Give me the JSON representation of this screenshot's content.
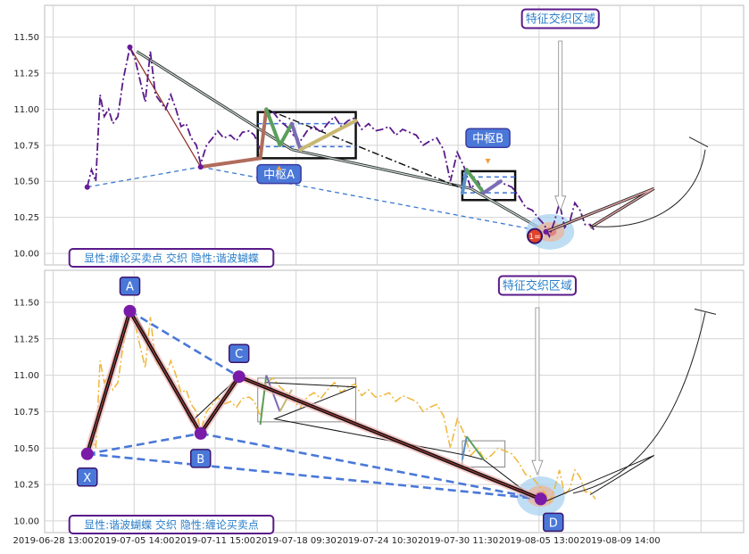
{
  "chart_data": [
    {
      "type": "line",
      "panel": "top",
      "ylim": [
        9.92,
        11.72
      ],
      "yticks": [
        10.0,
        10.25,
        10.5,
        10.75,
        11.0,
        11.25,
        11.5
      ],
      "grid": true,
      "legend_text": "显性:缠论买卖点 交织 隐性:谐波蝴蝶",
      "feature_label": "特征交织区域",
      "zhongshu": [
        {
          "label": "中枢A",
          "x0": 20.0,
          "x1": 31.5,
          "y0": 10.66,
          "y1": 10.98,
          "inner_y0": 10.74,
          "inner_y1": 10.9
        },
        {
          "label": "中枢B",
          "x0": 44.0,
          "x1": 50.2,
          "y0": 10.37,
          "y1": 10.57,
          "inner_y0": 10.42,
          "inner_y1": 10.53
        }
      ],
      "buy_point_marker": "1=",
      "price": [
        [
          0.0,
          10.46
        ],
        [
          0.5,
          10.58
        ],
        [
          1.0,
          10.5
        ],
        [
          1.5,
          11.1
        ],
        [
          2.0,
          10.95
        ],
        [
          2.5,
          11.0
        ],
        [
          3.0,
          10.9
        ],
        [
          3.6,
          10.95
        ],
        [
          4.2,
          11.2
        ],
        [
          5.0,
          11.43
        ],
        [
          5.6,
          11.35
        ],
        [
          6.2,
          11.2
        ],
        [
          6.8,
          11.05
        ],
        [
          7.4,
          11.4
        ],
        [
          8.0,
          11.1
        ],
        [
          8.6,
          11.05
        ],
        [
          9.2,
          11.0
        ],
        [
          9.8,
          11.1
        ],
        [
          10.4,
          11.0
        ],
        [
          11.0,
          10.88
        ],
        [
          11.6,
          10.9
        ],
        [
          12.2,
          10.8
        ],
        [
          12.8,
          10.75
        ],
        [
          13.3,
          10.62
        ],
        [
          14.0,
          10.75
        ],
        [
          14.7,
          10.8
        ],
        [
          15.3,
          10.85
        ],
        [
          16.0,
          10.8
        ],
        [
          16.8,
          10.82
        ],
        [
          17.5,
          10.78
        ],
        [
          18.2,
          10.84
        ],
        [
          19.0,
          10.85
        ],
        [
          19.6,
          10.82
        ],
        [
          20.3,
          10.72
        ],
        [
          21.0,
          10.95
        ],
        [
          21.8,
          10.98
        ],
        [
          22.6,
          10.92
        ],
        [
          23.4,
          10.88
        ],
        [
          24.2,
          10.82
        ],
        [
          25.0,
          10.78
        ],
        [
          25.8,
          10.85
        ],
        [
          26.6,
          10.88
        ],
        [
          27.4,
          10.84
        ],
        [
          28.2,
          10.9
        ],
        [
          29.0,
          10.95
        ],
        [
          29.8,
          10.88
        ],
        [
          30.6,
          10.92
        ],
        [
          31.4,
          10.94
        ],
        [
          32.2,
          10.86
        ],
        [
          33.0,
          10.9
        ],
        [
          33.8,
          10.85
        ],
        [
          34.6,
          10.86
        ],
        [
          35.4,
          10.88
        ],
        [
          36.2,
          10.82
        ],
        [
          37.0,
          10.86
        ],
        [
          37.8,
          10.84
        ],
        [
          38.6,
          10.82
        ],
        [
          39.4,
          10.75
        ],
        [
          40.2,
          10.78
        ],
        [
          41.0,
          10.8
        ],
        [
          41.8,
          10.72
        ],
        [
          42.6,
          10.5
        ],
        [
          43.4,
          10.7
        ],
        [
          44.2,
          10.6
        ],
        [
          45.0,
          10.45
        ],
        [
          45.8,
          10.5
        ],
        [
          46.6,
          10.42
        ],
        [
          47.4,
          10.45
        ],
        [
          48.2,
          10.5
        ],
        [
          49.0,
          10.48
        ],
        [
          49.8,
          10.46
        ],
        [
          50.6,
          10.4
        ],
        [
          51.4,
          10.32
        ],
        [
          52.2,
          10.3
        ],
        [
          53.0,
          10.24
        ],
        [
          53.6,
          10.2
        ],
        [
          54.2,
          10.12
        ],
        [
          54.8,
          10.22
        ],
        [
          55.4,
          10.35
        ],
        [
          56.0,
          10.18
        ],
        [
          56.6,
          10.22
        ],
        [
          57.2,
          10.35
        ],
        [
          57.8,
          10.3
        ],
        [
          58.4,
          10.2
        ],
        [
          59.0,
          10.2
        ],
        [
          59.6,
          10.15
        ]
      ],
      "bi_segments": [
        [
          0.0,
          10.46
        ],
        [
          5.0,
          11.43
        ],
        [
          13.3,
          10.6
        ],
        [
          20.3,
          10.68
        ],
        [
          21.0,
          11.0
        ],
        [
          24.5,
          10.72
        ],
        [
          31.5,
          10.92
        ],
        [
          44.0,
          10.45
        ],
        [
          44.5,
          10.58
        ],
        [
          46.5,
          10.42
        ],
        [
          48.5,
          10.5
        ],
        [
          52.5,
          10.25
        ],
        [
          53.8,
          10.12
        ]
      ],
      "xd_lines": [
        {
          "points": [
            [
              5.8,
              11.4
            ],
            [
              24.0,
              10.72
            ]
          ],
          "style": "solid-double"
        },
        {
          "points": [
            [
              24.0,
              10.72
            ],
            [
              45.0,
              10.45
            ]
          ],
          "style": "solid-double"
        },
        {
          "points": [
            [
              45.0,
              10.45
            ],
            [
              53.8,
              10.15
            ]
          ],
          "style": "solid-double"
        },
        {
          "points": [
            [
              21.0,
              11.0
            ],
            [
              44.0,
              10.45
            ]
          ],
          "style": "dashdot"
        },
        {
          "points": [
            [
              0.0,
              10.46
            ],
            [
              13.3,
              10.6
            ]
          ],
          "style": "dashed-blue"
        },
        {
          "points": [
            [
              13.3,
              10.6
            ],
            [
              53.8,
              10.15
            ]
          ],
          "style": "dashed-blue"
        }
      ],
      "harmonic_projection": [
        [
          53.8,
          10.12
        ],
        [
          61.0,
          10.3
        ],
        [
          66.5,
          10.45
        ],
        [
          64.0,
          10.18
        ],
        [
          59.0,
          10.18
        ]
      ]
    },
    {
      "type": "line",
      "panel": "bottom",
      "ylim": [
        9.92,
        11.72
      ],
      "yticks": [
        10.0,
        10.25,
        10.5,
        10.75,
        11.0,
        11.25,
        11.5
      ],
      "grid": true,
      "legend_text": "显性:谐波蝴蝶 交织 隐性:缠论买卖点",
      "feature_label": "特征交织区域",
      "points": [
        {
          "label": "X",
          "x": 0.0,
          "y": 10.46
        },
        {
          "label": "A",
          "x": 5.0,
          "y": 11.44
        },
        {
          "label": "B",
          "x": 13.3,
          "y": 10.6
        },
        {
          "label": "C",
          "x": 17.8,
          "y": 10.99
        },
        {
          "label": "D",
          "x": 53.2,
          "y": 10.15
        }
      ],
      "xlabels": [
        "2019-06-28 13:00",
        "2019-07-05 14:00",
        "2019-07-11 15:00",
        "2019-07-18 09:30",
        "2019-07-24 10:30",
        "2019-07-30 11:30",
        "2019-08-05 13:00",
        "2019-08-09 14:00"
      ],
      "xtick_positions": [
        -4.0,
        5.5,
        15.0,
        24.5,
        34.0,
        43.5,
        53.0,
        62.5
      ]
    }
  ]
}
